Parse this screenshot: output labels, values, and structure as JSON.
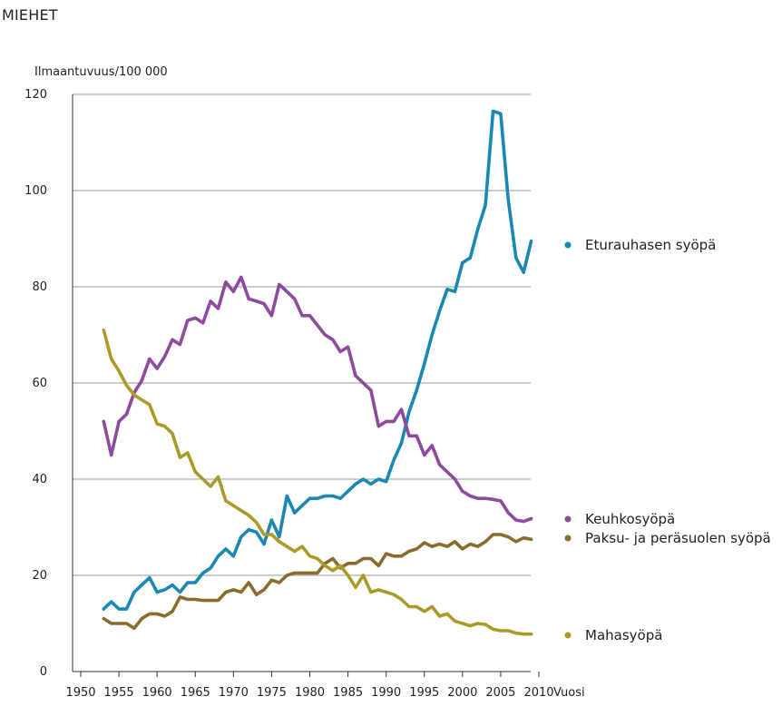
{
  "chart_data": {
    "type": "line",
    "title": "MIEHET",
    "ylabel": "Ilmaantuvuus/100 000",
    "xlabel": "Vuosi",
    "xlim": [
      1950,
      2010
    ],
    "ylim": [
      0,
      120
    ],
    "xticks": [
      1950,
      1955,
      1960,
      1965,
      1970,
      1975,
      1980,
      1985,
      1990,
      1995,
      2000,
      2005,
      2010
    ],
    "yticks": [
      0,
      20,
      40,
      60,
      80,
      100,
      120
    ],
    "grid": true,
    "legend_position": "right",
    "x": [
      1953,
      1954,
      1955,
      1956,
      1957,
      1958,
      1959,
      1960,
      1961,
      1962,
      1963,
      1964,
      1965,
      1966,
      1967,
      1968,
      1969,
      1970,
      1971,
      1972,
      1973,
      1974,
      1975,
      1976,
      1977,
      1978,
      1979,
      1980,
      1981,
      1982,
      1983,
      1984,
      1985,
      1986,
      1987,
      1988,
      1989,
      1990,
      1991,
      1992,
      1993,
      1994,
      1995,
      1996,
      1997,
      1998,
      1999,
      2000,
      2001,
      2002,
      2003,
      2004,
      2005,
      2006,
      2007,
      2008,
      2009
    ],
    "series": [
      {
        "name": "Eturauhasen syöpä",
        "color": "#1a87b4",
        "values": [
          13,
          14.5,
          13,
          13,
          16.5,
          18,
          19.5,
          16.5,
          17,
          18,
          16.5,
          18.5,
          18.5,
          20.5,
          21.5,
          24,
          25.5,
          24,
          28,
          29.5,
          29,
          26.5,
          31.5,
          28,
          36.5,
          33,
          34.5,
          36,
          36,
          36.5,
          36.5,
          36,
          37.5,
          39,
          40,
          39,
          40,
          39.5,
          44,
          47.5,
          54,
          58.5,
          64,
          70,
          75,
          79.5,
          79,
          85,
          86,
          92,
          97,
          116.5,
          116,
          98,
          86,
          83,
          89.5
        ]
      },
      {
        "name": "Keuhkosyöpä",
        "color": "#8e4b9e",
        "values": [
          52,
          45,
          52,
          53.5,
          58,
          60.5,
          65,
          63,
          65.5,
          69,
          68,
          73,
          73.5,
          72.5,
          77,
          75.5,
          81,
          79,
          82,
          77.5,
          77,
          76.5,
          74,
          80.5,
          79,
          77.5,
          74,
          74,
          72,
          70,
          69,
          66.5,
          67.5,
          61.5,
          60,
          58.5,
          51,
          52,
          52,
          54.5,
          49,
          49,
          45,
          47,
          43,
          41.5,
          40,
          37.5,
          36.5,
          36,
          36,
          35.8,
          35.5,
          33,
          31.5,
          31.2,
          31.8
        ]
      },
      {
        "name": "Paksu- ja peräsuolen syöpä",
        "color": "#8a6d2e",
        "values": [
          11,
          10,
          10,
          10,
          9,
          11,
          12,
          12,
          11.5,
          12.5,
          15.5,
          15,
          15,
          14.8,
          14.8,
          14.8,
          16.5,
          17,
          16.5,
          18.5,
          16,
          17,
          19,
          18.5,
          20,
          20.5,
          20.5,
          20.5,
          20.5,
          22.5,
          23.5,
          21.5,
          22.5,
          22.5,
          23.5,
          23.5,
          22,
          24.5,
          24,
          24,
          25,
          25.5,
          26.8,
          26,
          26.5,
          26,
          27,
          25.5,
          26.5,
          26,
          27,
          28.5,
          28.5,
          28,
          27,
          27.8,
          27.5
        ]
      },
      {
        "name": "Mahasyöpä",
        "color": "#aa9a28",
        "values": [
          71,
          65,
          62.5,
          59.5,
          57.5,
          56.5,
          55.5,
          51.5,
          51,
          49.5,
          44.5,
          45.5,
          41.5,
          40,
          38.5,
          40.5,
          35.5,
          34.5,
          33.5,
          32.5,
          31,
          28.5,
          28.5,
          27,
          26,
          25,
          26,
          24,
          23.5,
          22,
          21,
          22,
          20,
          17.5,
          20,
          16.5,
          17,
          16.5,
          16,
          15,
          13.5,
          13.5,
          12.5,
          13.5,
          11.5,
          12,
          10.5,
          10,
          9.5,
          10,
          9.8,
          8.8,
          8.5,
          8.5,
          8,
          7.8,
          7.8
        ]
      }
    ]
  }
}
